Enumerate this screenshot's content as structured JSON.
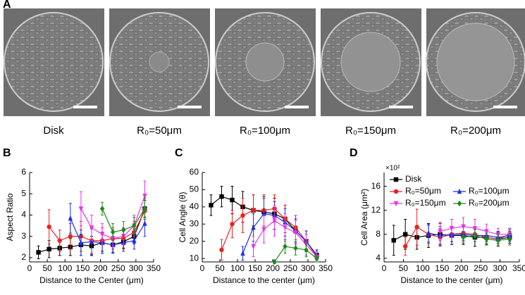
{
  "panel_labels": [
    "A",
    "B",
    "C",
    "D"
  ],
  "images": [
    {
      "label": "Disk"
    },
    {
      "label": "R₀=50μm"
    },
    {
      "label": "R₀=100μm"
    },
    {
      "label": "R₀=150μm"
    },
    {
      "label": "R₀=200μm"
    }
  ],
  "chart_data": [
    {
      "type": "line",
      "y_label": "Aspect Ratio",
      "x_label": "Distance to the Center (μm)",
      "xlim": [
        0,
        350
      ],
      "xticks": [
        0,
        50,
        100,
        150,
        200,
        250,
        300,
        350
      ],
      "ylim": [
        1.8,
        6
      ],
      "yticks": [
        2,
        3,
        4,
        5,
        6
      ],
      "series": [
        {
          "color": "#000000",
          "marker": "square",
          "x": [
            25,
            55,
            85,
            115,
            145,
            175,
            205,
            235,
            265,
            295,
            325
          ],
          "values": [
            2.25,
            2.4,
            2.45,
            2.5,
            2.6,
            2.55,
            2.7,
            2.6,
            2.75,
            3.0,
            4.3
          ],
          "errors": [
            0.3,
            0.4,
            0.35,
            0.4,
            0.5,
            0.45,
            0.4,
            0.35,
            0.3,
            0.35,
            0.4
          ]
        },
        {
          "color": "#e8231f",
          "marker": "circle",
          "x": [
            55,
            85,
            115,
            145,
            175,
            205,
            235,
            265,
            295,
            325
          ],
          "values": [
            3.45,
            2.8,
            3.0,
            3.0,
            2.8,
            2.8,
            2.9,
            2.9,
            3.2,
            4.2
          ],
          "errors": [
            0.8,
            0.5,
            0.6,
            0.7,
            0.6,
            0.6,
            0.5,
            0.5,
            0.5,
            0.6
          ]
        },
        {
          "color": "#1a2ee8",
          "marker": "triangle",
          "x": [
            115,
            145,
            175,
            205,
            235,
            265,
            295,
            325
          ],
          "values": [
            3.85,
            2.7,
            2.75,
            2.7,
            2.6,
            2.7,
            2.8,
            3.6
          ],
          "errors": [
            0.7,
            0.6,
            0.6,
            0.5,
            0.4,
            0.4,
            0.4,
            0.6
          ]
        },
        {
          "color": "#e833e8",
          "marker": "triangle-down",
          "x": [
            145,
            175,
            205,
            235,
            265,
            295,
            325
          ],
          "values": [
            4.3,
            3.4,
            3.1,
            2.9,
            3.0,
            3.5,
            4.9
          ],
          "errors": [
            0.8,
            0.6,
            0.5,
            0.4,
            0.4,
            0.5,
            0.7
          ]
        },
        {
          "color": "#1a8a1a",
          "marker": "diamond",
          "x": [
            205,
            235,
            265,
            295,
            325
          ],
          "values": [
            4.3,
            3.2,
            3.3,
            3.5,
            4.3
          ],
          "errors": [
            0.3,
            0.4,
            0.4,
            0.4,
            0.5
          ]
        }
      ]
    },
    {
      "type": "line",
      "y_label": "Cell Angle (θ)",
      "x_label": "Distance to the center (μm)",
      "xlim": [
        0,
        350
      ],
      "xticks": [
        0,
        50,
        100,
        150,
        200,
        250,
        300,
        350
      ],
      "ylim": [
        8,
        60
      ],
      "yticks": [
        10,
        20,
        30,
        40,
        50,
        60
      ],
      "series": [
        {
          "color": "#000000",
          "marker": "square",
          "x": [
            25,
            55,
            85,
            115,
            145,
            175,
            205,
            235,
            265,
            295,
            325
          ],
          "values": [
            41,
            46,
            44,
            40,
            38,
            37,
            36,
            33,
            26,
            20,
            12
          ],
          "errors": [
            6,
            6,
            8,
            9,
            9,
            9,
            9,
            8,
            7,
            6,
            3
          ]
        },
        {
          "color": "#e8231f",
          "marker": "circle",
          "x": [
            55,
            85,
            115,
            145,
            175,
            205,
            235,
            265,
            295,
            325
          ],
          "values": [
            15,
            30,
            35,
            38,
            38,
            39,
            33,
            28,
            20,
            11
          ],
          "errors": [
            6,
            8,
            10,
            9,
            9,
            8,
            8,
            7,
            6,
            3
          ]
        },
        {
          "color": "#1a2ee8",
          "marker": "triangle",
          "x": [
            115,
            145,
            175,
            205,
            235,
            265,
            295,
            325
          ],
          "values": [
            13,
            28,
            36,
            35,
            31,
            26,
            20,
            12
          ],
          "errors": [
            4,
            8,
            9,
            8,
            8,
            7,
            6,
            3
          ]
        },
        {
          "color": "#e833e8",
          "marker": "triangle-down",
          "x": [
            145,
            175,
            205,
            235,
            265,
            295,
            325
          ],
          "values": [
            17,
            27,
            32,
            28,
            25,
            18,
            11
          ],
          "errors": [
            6,
            8,
            9,
            8,
            7,
            6,
            3
          ]
        },
        {
          "color": "#1a8a1a",
          "marker": "diamond",
          "x": [
            205,
            235,
            265,
            295,
            325
          ],
          "values": [
            8,
            17,
            16,
            15,
            10
          ],
          "errors": [
            1,
            4,
            4,
            4,
            2
          ]
        }
      ]
    },
    {
      "type": "line",
      "y_label": "Cell Area (μm²)",
      "x_label": "Distance to the center (μm)",
      "multiplier": "×10²",
      "xlim": [
        0,
        350
      ],
      "xticks": [
        0,
        50,
        100,
        150,
        200,
        250,
        300,
        350
      ],
      "ylim": [
        3.4,
        18.3
      ],
      "yticks": [
        4,
        8,
        12,
        16
      ],
      "legend": "upper left",
      "series": [
        {
          "name": "Disk",
          "color": "#000000",
          "marker": "square",
          "x": [
            25,
            55,
            85,
            115,
            145,
            175,
            205,
            235,
            265,
            295,
            325
          ],
          "values": [
            7.0,
            8.0,
            7.5,
            7.8,
            8.0,
            7.8,
            7.8,
            7.5,
            7.5,
            7.2,
            7.5
          ],
          "errors": [
            2.5,
            2.5,
            2.0,
            2.0,
            1.8,
            1.5,
            1.5,
            1.5,
            1.2,
            1.2,
            1.0
          ]
        },
        {
          "name": "R₀=50μm",
          "color": "#e8231f",
          "marker": "circle",
          "x": [
            55,
            85,
            115,
            145,
            175,
            205,
            235,
            265,
            295,
            325
          ],
          "values": [
            6.0,
            9.2,
            8.0,
            7.5,
            8.0,
            8.2,
            8.0,
            7.5,
            7.2,
            8.0
          ],
          "errors": [
            1.5,
            3.0,
            1.5,
            1.5,
            1.2,
            1.2,
            1.2,
            1.0,
            1.0,
            1.0
          ]
        },
        {
          "name": "R₀=100μm",
          "color": "#1a2ee8",
          "marker": "triangle",
          "x": [
            115,
            145,
            175,
            205,
            235,
            265,
            295,
            325
          ],
          "values": [
            8.2,
            7.8,
            8.0,
            8.0,
            7.8,
            7.8,
            7.5,
            7.8
          ],
          "errors": [
            1.5,
            1.5,
            1.2,
            1.2,
            1.0,
            1.0,
            1.0,
            1.0
          ]
        },
        {
          "name": "R₀=150μm",
          "color": "#e833e8",
          "marker": "triangle-down",
          "x": [
            145,
            175,
            205,
            235,
            265,
            295,
            325
          ],
          "values": [
            8.5,
            9.0,
            9.3,
            9.0,
            8.5,
            8.0,
            8.0
          ],
          "errors": [
            1.5,
            1.5,
            1.5,
            1.5,
            1.2,
            1.0,
            1.0
          ]
        },
        {
          "name": "R₀=200μm",
          "color": "#1a8a1a",
          "marker": "diamond",
          "x": [
            205,
            235,
            265,
            295,
            325
          ],
          "values": [
            7.5,
            7.8,
            7.2,
            7.0,
            7.2
          ],
          "errors": [
            1.0,
            1.0,
            1.0,
            1.0,
            1.0
          ]
        }
      ]
    }
  ]
}
